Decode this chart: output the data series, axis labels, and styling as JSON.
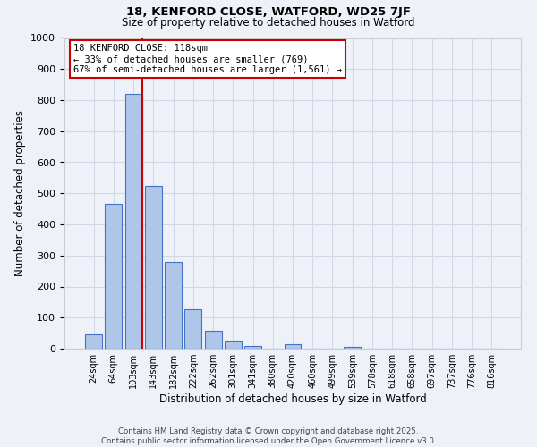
{
  "title_line1": "18, KENFORD CLOSE, WATFORD, WD25 7JF",
  "title_line2": "Size of property relative to detached houses in Watford",
  "xlabel": "Distribution of detached houses by size in Watford",
  "ylabel": "Number of detached properties",
  "categories": [
    "24sqm",
    "64sqm",
    "103sqm",
    "143sqm",
    "182sqm",
    "222sqm",
    "262sqm",
    "301sqm",
    "341sqm",
    "380sqm",
    "420sqm",
    "460sqm",
    "499sqm",
    "539sqm",
    "578sqm",
    "618sqm",
    "658sqm",
    "697sqm",
    "737sqm",
    "776sqm",
    "816sqm"
  ],
  "values": [
    45,
    465,
    820,
    525,
    278,
    128,
    57,
    25,
    10,
    0,
    13,
    0,
    0,
    7,
    0,
    0,
    0,
    0,
    0,
    0,
    0
  ],
  "bar_color": "#aec6e8",
  "bar_edge_color": "#4472c4",
  "grid_color": "#d0d8e8",
  "background_color": "#eef2f8",
  "red_line_bin": 2,
  "annotation_text": "18 KENFORD CLOSE: 118sqm\n← 33% of detached houses are smaller (769)\n67% of semi-detached houses are larger (1,561) →",
  "annotation_box_color": "#ffffff",
  "annotation_border_color": "#cc0000",
  "red_line_color": "#cc0000",
  "footer_line1": "Contains HM Land Registry data © Crown copyright and database right 2025.",
  "footer_line2": "Contains public sector information licensed under the Open Government Licence v3.0.",
  "ylim": [
    0,
    1000
  ],
  "yticks": [
    0,
    100,
    200,
    300,
    400,
    500,
    600,
    700,
    800,
    900,
    1000
  ]
}
